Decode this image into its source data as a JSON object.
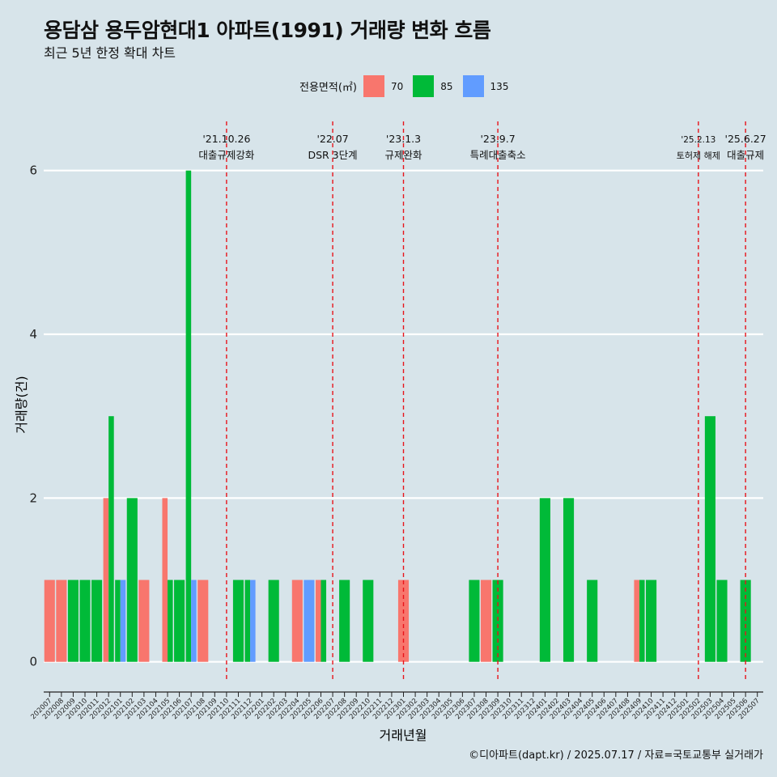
{
  "title": "용담삼 용두암현대1 아파트(1991) 거래량 변화 흐름",
  "subtitle": "최근 5년 한정 확대 차트",
  "caption": "©디아파트(dapt.kr) / 2025.07.17 / 자료=국토교통부 실거래가",
  "legend": {
    "title": "전용면적(㎡)",
    "items": [
      {
        "label": "70",
        "color": "#f8766d"
      },
      {
        "label": "85",
        "color": "#00ba38"
      },
      {
        "label": "135",
        "color": "#619cff"
      }
    ]
  },
  "chart_data": {
    "type": "bar",
    "xlabel": "거래년월",
    "ylabel": "거래량(건)",
    "ylim": [
      -0.25,
      6.6
    ],
    "yticks": [
      0,
      2,
      4,
      6
    ],
    "grid": true,
    "legend_position": "top",
    "categories": [
      "202007",
      "202008",
      "202009",
      "202010",
      "202011",
      "202012",
      "202101",
      "202102",
      "202103",
      "202104",
      "202105",
      "202106",
      "202107",
      "202108",
      "202109",
      "202110",
      "202111",
      "202112",
      "202201",
      "202202",
      "202203",
      "202204",
      "202205",
      "202206",
      "202207",
      "202208",
      "202209",
      "202210",
      "202211",
      "202212",
      "202301",
      "202302",
      "202303",
      "202304",
      "202305",
      "202306",
      "202307",
      "202308",
      "202309",
      "202310",
      "202311",
      "202312",
      "202401",
      "202402",
      "202403",
      "202404",
      "202405",
      "202406",
      "202407",
      "202408",
      "202409",
      "202410",
      "202411",
      "202412",
      "202501",
      "202502",
      "202503",
      "202504",
      "202505",
      "202506",
      "202507"
    ],
    "series": [
      {
        "name": "70",
        "color": "#f8766d",
        "values": [
          1,
          1,
          0,
          0,
          0,
          2,
          0,
          0,
          1,
          0,
          2,
          0,
          0,
          1,
          0,
          0,
          0,
          0,
          0,
          0,
          0,
          1,
          0,
          1,
          0,
          0,
          0,
          0,
          0,
          0,
          1,
          0,
          0,
          0,
          0,
          0,
          0,
          1,
          0,
          0,
          0,
          0,
          0,
          0,
          0,
          0,
          0,
          0,
          0,
          0,
          1,
          0,
          0,
          0,
          0,
          0,
          0,
          0,
          0,
          0,
          0
        ]
      },
      {
        "name": "85",
        "color": "#00ba38",
        "values": [
          0,
          0,
          1,
          1,
          1,
          3,
          1,
          2,
          0,
          0,
          1,
          1,
          6,
          0,
          0,
          0,
          1,
          1,
          0,
          1,
          0,
          0,
          0,
          1,
          0,
          1,
          0,
          1,
          0,
          0,
          0,
          0,
          0,
          0,
          0,
          0,
          1,
          0,
          1,
          0,
          0,
          0,
          2,
          0,
          2,
          0,
          1,
          0,
          0,
          0,
          1,
          1,
          0,
          0,
          0,
          0,
          3,
          1,
          0,
          1,
          0
        ]
      },
      {
        "name": "135",
        "color": "#619cff",
        "values": [
          0,
          0,
          0,
          0,
          0,
          0,
          1,
          0,
          0,
          0,
          0,
          0,
          1,
          0,
          0,
          0,
          0,
          1,
          0,
          0,
          0,
          0,
          1,
          0,
          0,
          0,
          0,
          0,
          0,
          0,
          0,
          0,
          0,
          0,
          0,
          0,
          0,
          0,
          0,
          0,
          0,
          0,
          0,
          0,
          0,
          0,
          0,
          0,
          0,
          0,
          0,
          0,
          0,
          0,
          0,
          0,
          0,
          0,
          0,
          0,
          0
        ]
      }
    ],
    "events": [
      {
        "date": "'21.10.26",
        "label": "대출규제강화",
        "month": "202110"
      },
      {
        "date": "'22.07",
        "label": "DSR 3단계",
        "month": "202207"
      },
      {
        "date": "'23.1.3",
        "label": "규제완화",
        "month": "202301"
      },
      {
        "date": "'23.9.7",
        "label": "특례대출축소",
        "month": "202309"
      },
      {
        "date": "'25.2.13",
        "label": "토허제 해제",
        "month": "202502"
      },
      {
        "date": "'25.6.27",
        "label": "대출규제",
        "month": "202506"
      }
    ]
  }
}
